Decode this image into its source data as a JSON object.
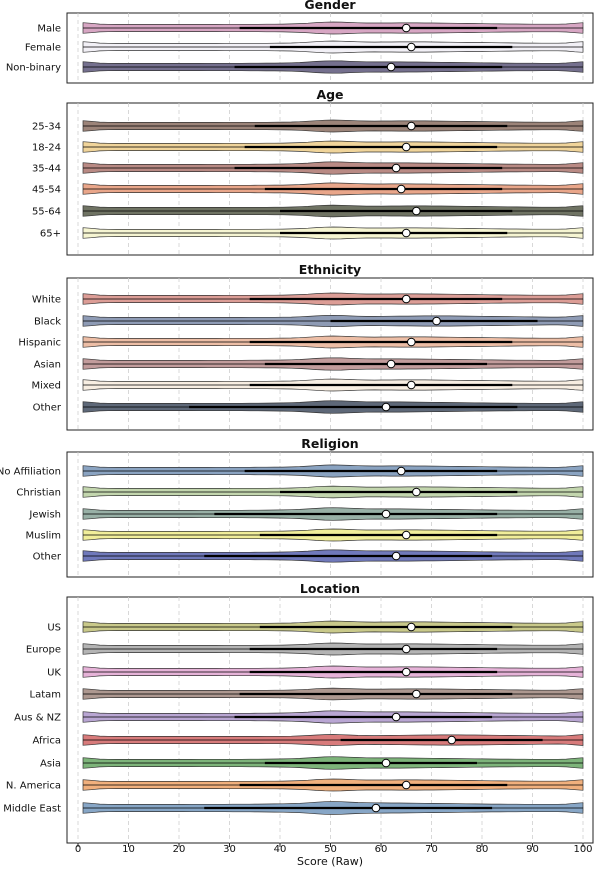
{
  "chart_data": {
    "type": "violin",
    "xlabel": "Score (Raw)",
    "xlim": [
      0,
      100
    ],
    "xticks": [
      0,
      10,
      20,
      30,
      40,
      50,
      60,
      70,
      80,
      90,
      100
    ],
    "grid": "vertical dashed",
    "panels": [
      {
        "title": "Gender",
        "categories": [
          {
            "name": "Male",
            "color": "#d7a6c3",
            "median": 65,
            "q1": 32,
            "q3": 83
          },
          {
            "name": "Female",
            "color": "#f2f0f6",
            "median": 66,
            "q1": 38,
            "q3": 86
          },
          {
            "name": "Non-binary",
            "color": "#75708e",
            "median": 62,
            "q1": 31,
            "q3": 84
          }
        ]
      },
      {
        "title": "Age",
        "categories": [
          {
            "name": "25-34",
            "color": "#9c8479",
            "median": 66,
            "q1": 35,
            "q3": 85
          },
          {
            "name": "18-24",
            "color": "#f0d49a",
            "median": 65,
            "q1": 33,
            "q3": 83
          },
          {
            "name": "35-44",
            "color": "#b98a84",
            "median": 63,
            "q1": 31,
            "q3": 84
          },
          {
            "name": "45-54",
            "color": "#e9a68a",
            "median": 64,
            "q1": 37,
            "q3": 84
          },
          {
            "name": "55-64",
            "color": "#6f7363",
            "median": 67,
            "q1": 40,
            "q3": 86
          },
          {
            "name": "65+",
            "color": "#f6f5d2",
            "median": 65,
            "q1": 40,
            "q3": 85
          }
        ]
      },
      {
        "title": "Ethnicity",
        "categories": [
          {
            "name": "White",
            "color": "#dc9d96",
            "median": 65,
            "q1": 34,
            "q3": 84
          },
          {
            "name": "Black",
            "color": "#8e9bb5",
            "median": 71,
            "q1": 50,
            "q3": 91
          },
          {
            "name": "Hispanic",
            "color": "#edbea6",
            "median": 66,
            "q1": 34,
            "q3": 86
          },
          {
            "name": "Asian",
            "color": "#c29c9c",
            "median": 62,
            "q1": 37,
            "q3": 81
          },
          {
            "name": "Mixed",
            "color": "#f8eee2",
            "median": 66,
            "q1": 34,
            "q3": 86
          },
          {
            "name": "Other",
            "color": "#5e6878",
            "median": 61,
            "q1": 22,
            "q3": 87
          }
        ]
      },
      {
        "title": "Religion",
        "categories": [
          {
            "name": "No Affiliation",
            "color": "#8aa3c1",
            "median": 64,
            "q1": 33,
            "q3": 83
          },
          {
            "name": "Christian",
            "color": "#c3d6ae",
            "median": 67,
            "q1": 40,
            "q3": 87
          },
          {
            "name": "Jewish",
            "color": "#98b0a6",
            "median": 61,
            "q1": 27,
            "q3": 83
          },
          {
            "name": "Muslim",
            "color": "#f1ee9a",
            "median": 65,
            "q1": 36,
            "q3": 83
          },
          {
            "name": "Other",
            "color": "#7079bb",
            "median": 63,
            "q1": 25,
            "q3": 82
          }
        ]
      },
      {
        "title": "Location",
        "categories": [
          {
            "name": "US",
            "color": "#c9c98a",
            "median": 66,
            "q1": 36,
            "q3": 86
          },
          {
            "name": "Europe",
            "color": "#b4b4b4",
            "median": 65,
            "q1": 34,
            "q3": 83
          },
          {
            "name": "UK",
            "color": "#e6b3d8",
            "median": 65,
            "q1": 34,
            "q3": 83
          },
          {
            "name": "Latam",
            "color": "#ad9890",
            "median": 67,
            "q1": 32,
            "q3": 86
          },
          {
            "name": "Aus & NZ",
            "color": "#b9a6d3",
            "median": 63,
            "q1": 31,
            "q3": 82
          },
          {
            "name": "Africa",
            "color": "#d87b7b",
            "median": 74,
            "q1": 52,
            "q3": 92
          },
          {
            "name": "Asia",
            "color": "#7db47a",
            "median": 61,
            "q1": 37,
            "q3": 79
          },
          {
            "name": "N. America",
            "color": "#f1b07d",
            "median": 65,
            "q1": 32,
            "q3": 85
          },
          {
            "name": "Middle East",
            "color": "#87a6c6",
            "median": 59,
            "q1": 25,
            "q3": 82
          }
        ]
      }
    ]
  }
}
